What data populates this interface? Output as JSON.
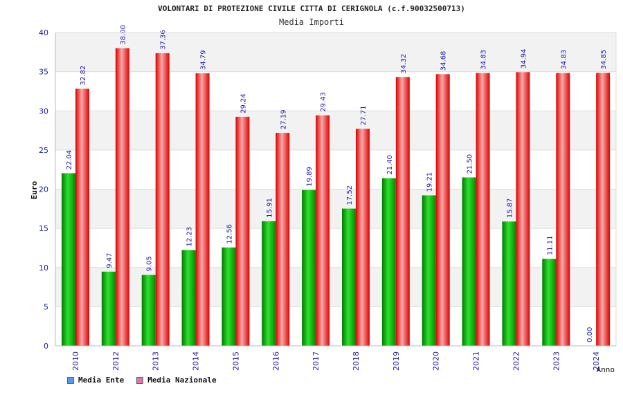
{
  "title": "VOLONTARI DI PROTEZIONE CIVILE CITTA DI CERIGNOLA (c.f.90032500713)",
  "subtitle": "Media Importi",
  "chart_data": {
    "type": "bar",
    "categories": [
      "2010",
      "2012",
      "2013",
      "2014",
      "2015",
      "2016",
      "2017",
      "2018",
      "2019",
      "2020",
      "2021",
      "2022",
      "2023",
      "2024"
    ],
    "series": [
      {
        "name": "Media Ente",
        "values": [
          22.04,
          9.47,
          9.05,
          12.23,
          12.56,
          15.91,
          19.89,
          17.52,
          21.4,
          19.21,
          21.5,
          15.87,
          11.11,
          0.0
        ]
      },
      {
        "name": "Media Nazionale",
        "values": [
          32.82,
          38.0,
          37.36,
          34.79,
          29.24,
          27.19,
          29.43,
          27.71,
          34.32,
          34.68,
          34.83,
          34.94,
          34.83,
          34.85
        ]
      }
    ],
    "data_labels": [
      [
        "22.04",
        "9.47",
        "9.05",
        "12.23",
        "12.56",
        "15.91",
        "19.89",
        "17.52",
        "21.40",
        "19.21",
        "21.50",
        "15.87",
        "11.11",
        "0.00"
      ],
      [
        "32.82",
        "38.00",
        "37.36",
        "34.79",
        "29.24",
        "27.19",
        "29.43",
        "27.71",
        "34.32",
        "34.68",
        "34.83",
        "34.94",
        "34.83",
        "34.85"
      ]
    ],
    "ylabel": "Euro",
    "xlabel": "Anno",
    "ylim": [
      0,
      40
    ],
    "yticks": [
      0,
      5,
      10,
      15,
      20,
      25,
      30,
      35,
      40
    ],
    "grid": true,
    "legend_position": "bottom-left",
    "colors": {
      "ente_bar": "#00b400",
      "nazionale_bar": "#ee1111",
      "ente_swatch": "#5599ee",
      "nazionale_swatch": "#dd77aa",
      "band": "#f2f2f2",
      "tick_text": "#1a1aa6"
    }
  }
}
